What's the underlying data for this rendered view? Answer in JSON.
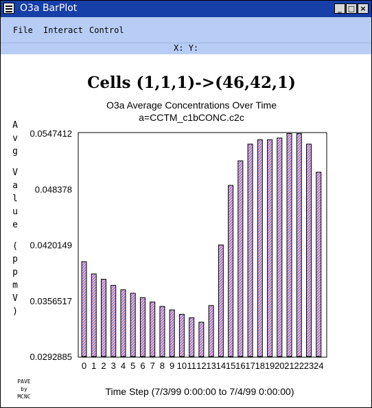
{
  "window": {
    "title": "O3a BarPlot"
  },
  "menu": {
    "file": "File",
    "interact": "Interact",
    "control": "Control"
  },
  "coords": {
    "x_label": "X:",
    "y_label": "Y:"
  },
  "credit": [
    "PAVE",
    "by",
    "MCNC"
  ],
  "colors": {
    "titlebar": "#173fa8",
    "menubar": "#b8cdf6",
    "bar_fill": "#f3b6d6",
    "bar_hatch": "#6e6ec8"
  },
  "chart_data": {
    "type": "bar",
    "heading": "Cells (1,1,1)->(46,42,1)",
    "title": "O3a Average Concentrations Over Time",
    "subtitle": "a=CCTM_c1bCONC.c2c",
    "ylabel": "Avg Value (ppmV)",
    "xlabel": "Time Step (7/3/99 0:00:00 to 7/4/99 0:00:00)",
    "ylim": [
      0.0292885,
      0.0547412
    ],
    "yticks": [
      "0.0547412",
      "0.048378",
      "0.0420149",
      "0.0356517",
      "0.0292885"
    ],
    "grid": false,
    "categories": [
      "0",
      "1",
      "2",
      "3",
      "4",
      "5",
      "6",
      "7",
      "8",
      "9",
      "10",
      "11",
      "12",
      "13",
      "14",
      "15",
      "16",
      "17",
      "18",
      "19",
      "20",
      "21",
      "22",
      "23",
      "24"
    ],
    "values": [
      0.0401,
      0.0387,
      0.0381,
      0.0374,
      0.0369,
      0.0365,
      0.036,
      0.0355,
      0.035,
      0.0346,
      0.0341,
      0.0337,
      0.0332,
      0.0351,
      0.042,
      0.0488,
      0.0516,
      0.0535,
      0.054,
      0.054,
      0.0542,
      0.0547,
      0.0547,
      0.0535,
      0.0503
    ]
  }
}
